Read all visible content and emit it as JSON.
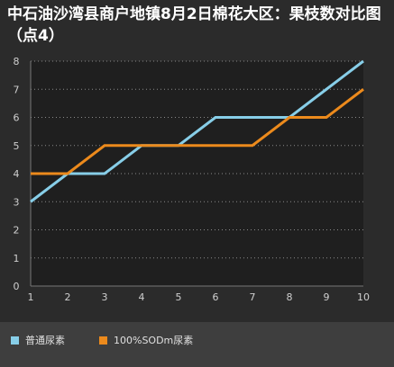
{
  "chart_data": {
    "type": "line",
    "title": "中石油沙湾县商户地镇8月2日棉花大区：果枝数对比图（点4）",
    "xlabel": "",
    "ylabel": "",
    "x": [
      1,
      2,
      3,
      4,
      5,
      6,
      7,
      8,
      9,
      10
    ],
    "xlim": [
      1,
      10
    ],
    "ylim": [
      0,
      8
    ],
    "yticks": [
      0,
      1,
      2,
      3,
      4,
      5,
      6,
      7,
      8
    ],
    "grid": "horizontal-dotted",
    "legend_position": "bottom",
    "series": [
      {
        "name": "普通尿素",
        "color": "#87cee8",
        "values": [
          3,
          4,
          4,
          5,
          5,
          6,
          6,
          6,
          7,
          8
        ]
      },
      {
        "name": "100%SODm尿素",
        "color": "#ec8a1c",
        "values": [
          4,
          4,
          5,
          5,
          5,
          5,
          5,
          6,
          6,
          7
        ]
      }
    ]
  }
}
